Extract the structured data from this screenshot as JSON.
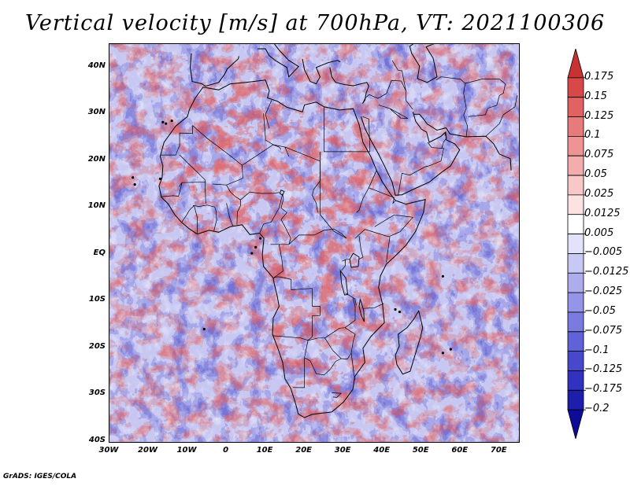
{
  "title": "Vertical velocity [m/s] at 700hPa, VT: 2021100306",
  "credit": "GrADS: IGES/COLA",
  "map": {
    "lon_range": [
      -30,
      75
    ],
    "lat_range": [
      -40,
      45
    ],
    "lat_ticks": [
      {
        "value": 40,
        "label": "40N"
      },
      {
        "value": 30,
        "label": "30N"
      },
      {
        "value": 20,
        "label": "20N"
      },
      {
        "value": 10,
        "label": "10N"
      },
      {
        "value": 0,
        "label": "EQ"
      },
      {
        "value": -10,
        "label": "10S"
      },
      {
        "value": -20,
        "label": "20S"
      },
      {
        "value": -30,
        "label": "30S"
      },
      {
        "value": -40,
        "label": "40S"
      }
    ],
    "lon_ticks": [
      {
        "value": -30,
        "label": "30W"
      },
      {
        "value": -20,
        "label": "20W"
      },
      {
        "value": -10,
        "label": "10W"
      },
      {
        "value": 0,
        "label": "0"
      },
      {
        "value": 10,
        "label": "10E"
      },
      {
        "value": 20,
        "label": "20E"
      },
      {
        "value": 30,
        "label": "30E"
      },
      {
        "value": 40,
        "label": "40E"
      },
      {
        "value": 50,
        "label": "50E"
      },
      {
        "value": 60,
        "label": "60E"
      },
      {
        "value": 70,
        "label": "70E"
      }
    ]
  },
  "colorbar": {
    "colors": [
      "#c83232",
      "#d84848",
      "#e06262",
      "#e77a7a",
      "#ee9494",
      "#f3adad",
      "#f8c8c8",
      "#fce2e2",
      "#ffffff",
      "#e2e2fa",
      "#c8c8f4",
      "#adadee",
      "#9494e8",
      "#7a7ae0",
      "#6262d8",
      "#4848cc",
      "#3232c0",
      "#1e1eac",
      "#0c0c96"
    ],
    "labels": [
      "0.175",
      "0.15",
      "0.125",
      "0.1",
      "0.075",
      "0.05",
      "0.025",
      "0.0125",
      "0.005",
      "−0.005",
      "−0.0125",
      "−0.025",
      "−0.05",
      "−0.075",
      "−0.1",
      "−0.125",
      "−0.175",
      "−0.2"
    ]
  }
}
